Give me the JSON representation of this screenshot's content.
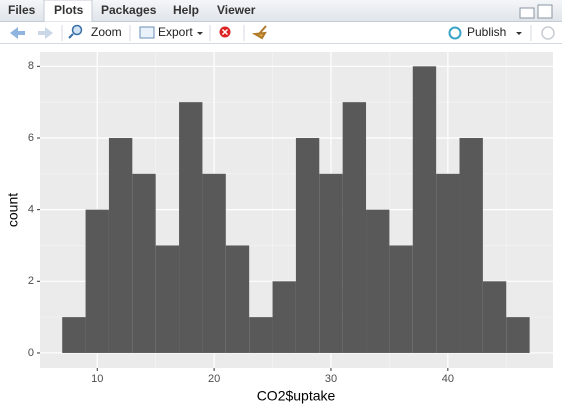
{
  "tabs": [
    "Files",
    "Plots",
    "Packages",
    "Help",
    "Viewer"
  ],
  "toolbar": {
    "zoom": "Zoom",
    "export": "Export",
    "publish": "Publish"
  },
  "chart_data": {
    "type": "histogram",
    "xlabel": "CO2$uptake",
    "ylabel": "count",
    "bins": [
      7,
      9,
      11,
      13,
      15,
      17,
      19,
      21,
      23,
      25,
      27,
      29,
      31,
      33,
      35,
      37,
      39,
      41,
      43,
      45,
      47
    ],
    "values": [
      1,
      4,
      6,
      5,
      3,
      7,
      5,
      3,
      1,
      2,
      6,
      5,
      7,
      4,
      3,
      8,
      5,
      6,
      2,
      1
    ],
    "color": "#595959",
    "xlim": [
      5.1,
      49
    ],
    "ylim": [
      -0.42,
      8.4
    ],
    "xticks": [
      10,
      20,
      30,
      40
    ],
    "yticks": [
      0,
      2,
      4,
      6,
      8
    ],
    "xminor": [
      5,
      15,
      25,
      35,
      45
    ],
    "yminor": [
      1,
      3,
      5,
      7
    ],
    "grid": true
  }
}
